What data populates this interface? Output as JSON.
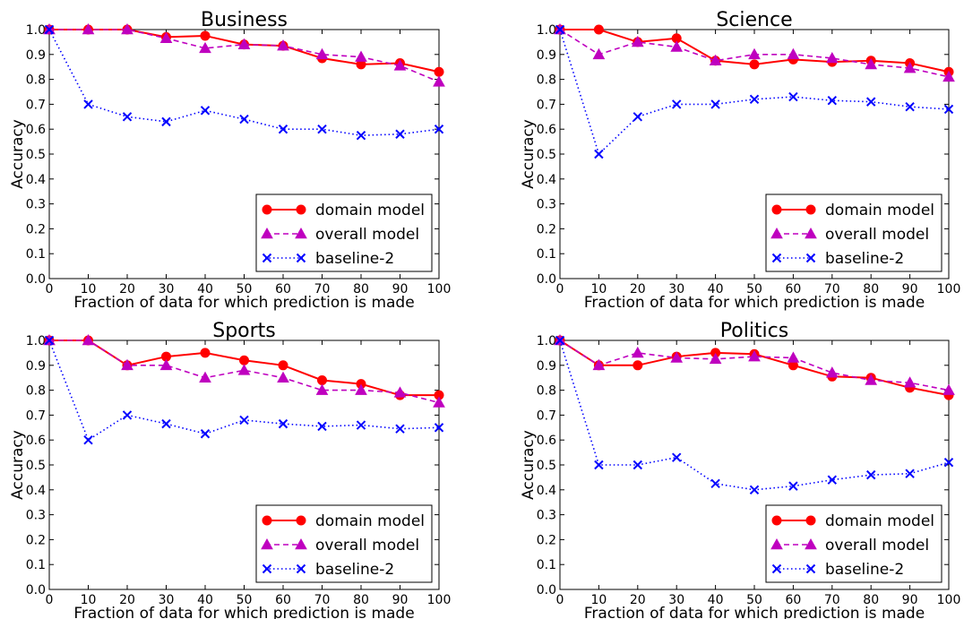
{
  "figure": {
    "legend_labels": [
      "domain model",
      "overall model",
      "baseline-2"
    ],
    "series_colors": {
      "domain model": "#ff0000",
      "overall model": "#bf00bf",
      "baseline-2": "#0000ff"
    },
    "series_markers": {
      "domain model": "circle",
      "overall model": "triangle-up",
      "baseline-2": "x"
    },
    "series_linestyles": {
      "domain model": "solid",
      "overall model": "dashed",
      "baseline-2": "dotted"
    }
  },
  "chart_data": [
    {
      "type": "line",
      "title": "Business",
      "xlabel": "Fraction of data for which prediction is made",
      "ylabel": "Accuracy",
      "x": [
        0,
        10,
        20,
        30,
        40,
        50,
        60,
        70,
        80,
        90,
        100
      ],
      "xticks": [
        "0",
        "10",
        "20",
        "30",
        "40",
        "50",
        "60",
        "70",
        "80",
        "90",
        "100"
      ],
      "yticks": [
        "0.0",
        "0.1",
        "0.2",
        "0.3",
        "0.4",
        "0.5",
        "0.6",
        "0.7",
        "0.8",
        "0.9",
        "1.0"
      ],
      "xlim": [
        0,
        100
      ],
      "ylim": [
        0,
        1
      ],
      "legend_position": "lower-right",
      "grid": false,
      "series": [
        {
          "name": "domain model",
          "values": [
            1.0,
            1.0,
            1.0,
            0.97,
            0.975,
            0.94,
            0.935,
            0.885,
            0.86,
            0.865,
            0.83
          ]
        },
        {
          "name": "overall model",
          "values": [
            1.0,
            1.0,
            1.0,
            0.965,
            0.925,
            0.94,
            0.935,
            0.9,
            0.89,
            0.855,
            0.79
          ]
        },
        {
          "name": "baseline-2",
          "values": [
            1.0,
            0.7,
            0.65,
            0.63,
            0.675,
            0.64,
            0.6,
            0.6,
            0.575,
            0.58,
            0.6
          ]
        }
      ]
    },
    {
      "type": "line",
      "title": "Science",
      "xlabel": "Fraction of data for which prediction is made",
      "ylabel": "Accuracy",
      "x": [
        0,
        10,
        20,
        30,
        40,
        50,
        60,
        70,
        80,
        90,
        100
      ],
      "xticks": [
        "0",
        "10",
        "20",
        "30",
        "40",
        "50",
        "60",
        "70",
        "80",
        "90",
        "100"
      ],
      "yticks": [
        "0.0",
        "0.1",
        "0.2",
        "0.3",
        "0.4",
        "0.5",
        "0.6",
        "0.7",
        "0.8",
        "0.9",
        "1.0"
      ],
      "xlim": [
        0,
        100
      ],
      "ylim": [
        0,
        1
      ],
      "legend_position": "lower-right",
      "grid": false,
      "series": [
        {
          "name": "domain model",
          "values": [
            1.0,
            1.0,
            0.95,
            0.965,
            0.875,
            0.86,
            0.88,
            0.87,
            0.875,
            0.865,
            0.83
          ]
        },
        {
          "name": "overall model",
          "values": [
            1.0,
            0.9,
            0.95,
            0.93,
            0.875,
            0.9,
            0.9,
            0.885,
            0.86,
            0.845,
            0.81
          ]
        },
        {
          "name": "baseline-2",
          "values": [
            1.0,
            0.5,
            0.65,
            0.7,
            0.7,
            0.72,
            0.73,
            0.715,
            0.71,
            0.69,
            0.68
          ]
        }
      ]
    },
    {
      "type": "line",
      "title": "Sports",
      "xlabel": "Fraction of data for which prediction is made",
      "ylabel": "Accuracy",
      "x": [
        0,
        10,
        20,
        30,
        40,
        50,
        60,
        70,
        80,
        90,
        100
      ],
      "xticks": [
        "0",
        "10",
        "20",
        "30",
        "40",
        "50",
        "60",
        "70",
        "80",
        "90",
        "100"
      ],
      "yticks": [
        "0.0",
        "0.1",
        "0.2",
        "0.3",
        "0.4",
        "0.5",
        "0.6",
        "0.7",
        "0.8",
        "0.9",
        "1.0"
      ],
      "xlim": [
        0,
        100
      ],
      "ylim": [
        0,
        1
      ],
      "legend_position": "lower-right",
      "grid": false,
      "series": [
        {
          "name": "domain model",
          "values": [
            1.0,
            1.0,
            0.9,
            0.935,
            0.95,
            0.92,
            0.9,
            0.84,
            0.825,
            0.78,
            0.78
          ]
        },
        {
          "name": "overall model",
          "values": [
            1.0,
            1.0,
            0.9,
            0.9,
            0.85,
            0.88,
            0.85,
            0.8,
            0.8,
            0.79,
            0.75
          ]
        },
        {
          "name": "baseline-2",
          "values": [
            1.0,
            0.6,
            0.7,
            0.665,
            0.625,
            0.68,
            0.665,
            0.655,
            0.66,
            0.645,
            0.65
          ]
        }
      ]
    },
    {
      "type": "line",
      "title": "Politics",
      "xlabel": "Fraction of data for which prediction is made",
      "ylabel": "Accuracy",
      "x": [
        0,
        10,
        20,
        30,
        40,
        50,
        60,
        70,
        80,
        90,
        100
      ],
      "xticks": [
        "0",
        "10",
        "20",
        "30",
        "40",
        "50",
        "60",
        "70",
        "80",
        "90",
        "100"
      ],
      "yticks": [
        "0.0",
        "0.1",
        "0.2",
        "0.3",
        "0.4",
        "0.5",
        "0.6",
        "0.7",
        "0.8",
        "0.9",
        "1.0"
      ],
      "xlim": [
        0,
        100
      ],
      "ylim": [
        0,
        1
      ],
      "legend_position": "lower-right",
      "grid": false,
      "series": [
        {
          "name": "domain model",
          "values": [
            1.0,
            0.9,
            0.9,
            0.935,
            0.95,
            0.945,
            0.9,
            0.855,
            0.85,
            0.81,
            0.78
          ]
        },
        {
          "name": "overall model",
          "values": [
            1.0,
            0.9,
            0.95,
            0.93,
            0.925,
            0.935,
            0.93,
            0.87,
            0.84,
            0.83,
            0.8
          ]
        },
        {
          "name": "baseline-2",
          "values": [
            1.0,
            0.5,
            0.5,
            0.53,
            0.425,
            0.4,
            0.415,
            0.44,
            0.46,
            0.465,
            0.51
          ]
        }
      ]
    }
  ]
}
